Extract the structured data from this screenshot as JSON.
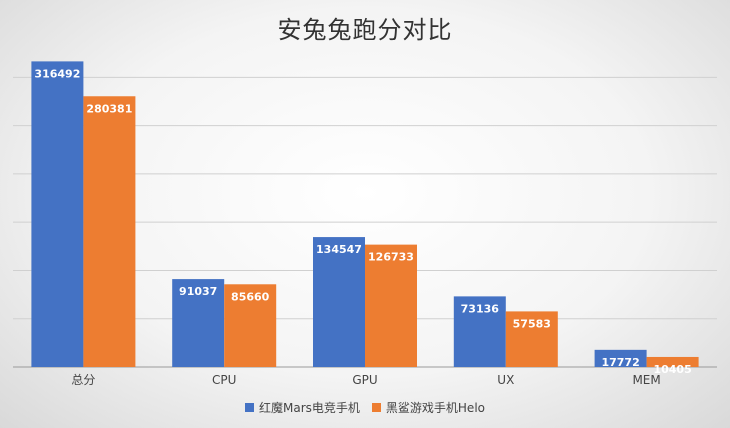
{
  "chart_data": {
    "type": "bar",
    "title": "安兔兔跑分对比",
    "categories": [
      "总分",
      "CPU",
      "GPU",
      "UX",
      "MEM"
    ],
    "series": [
      {
        "name": "红魔Mars电竞手机",
        "color": "#4472C4",
        "values": [
          316492,
          91037,
          134547,
          73136,
          17772
        ]
      },
      {
        "name": "黑鲨游戏手机Helo",
        "color": "#ED7D31",
        "values": [
          280381,
          85660,
          126733,
          57583,
          10405
        ]
      }
    ],
    "ylim": [
      0,
      320000
    ],
    "grid": true,
    "legend_position": "bottom",
    "xlabel": "",
    "ylabel": ""
  }
}
